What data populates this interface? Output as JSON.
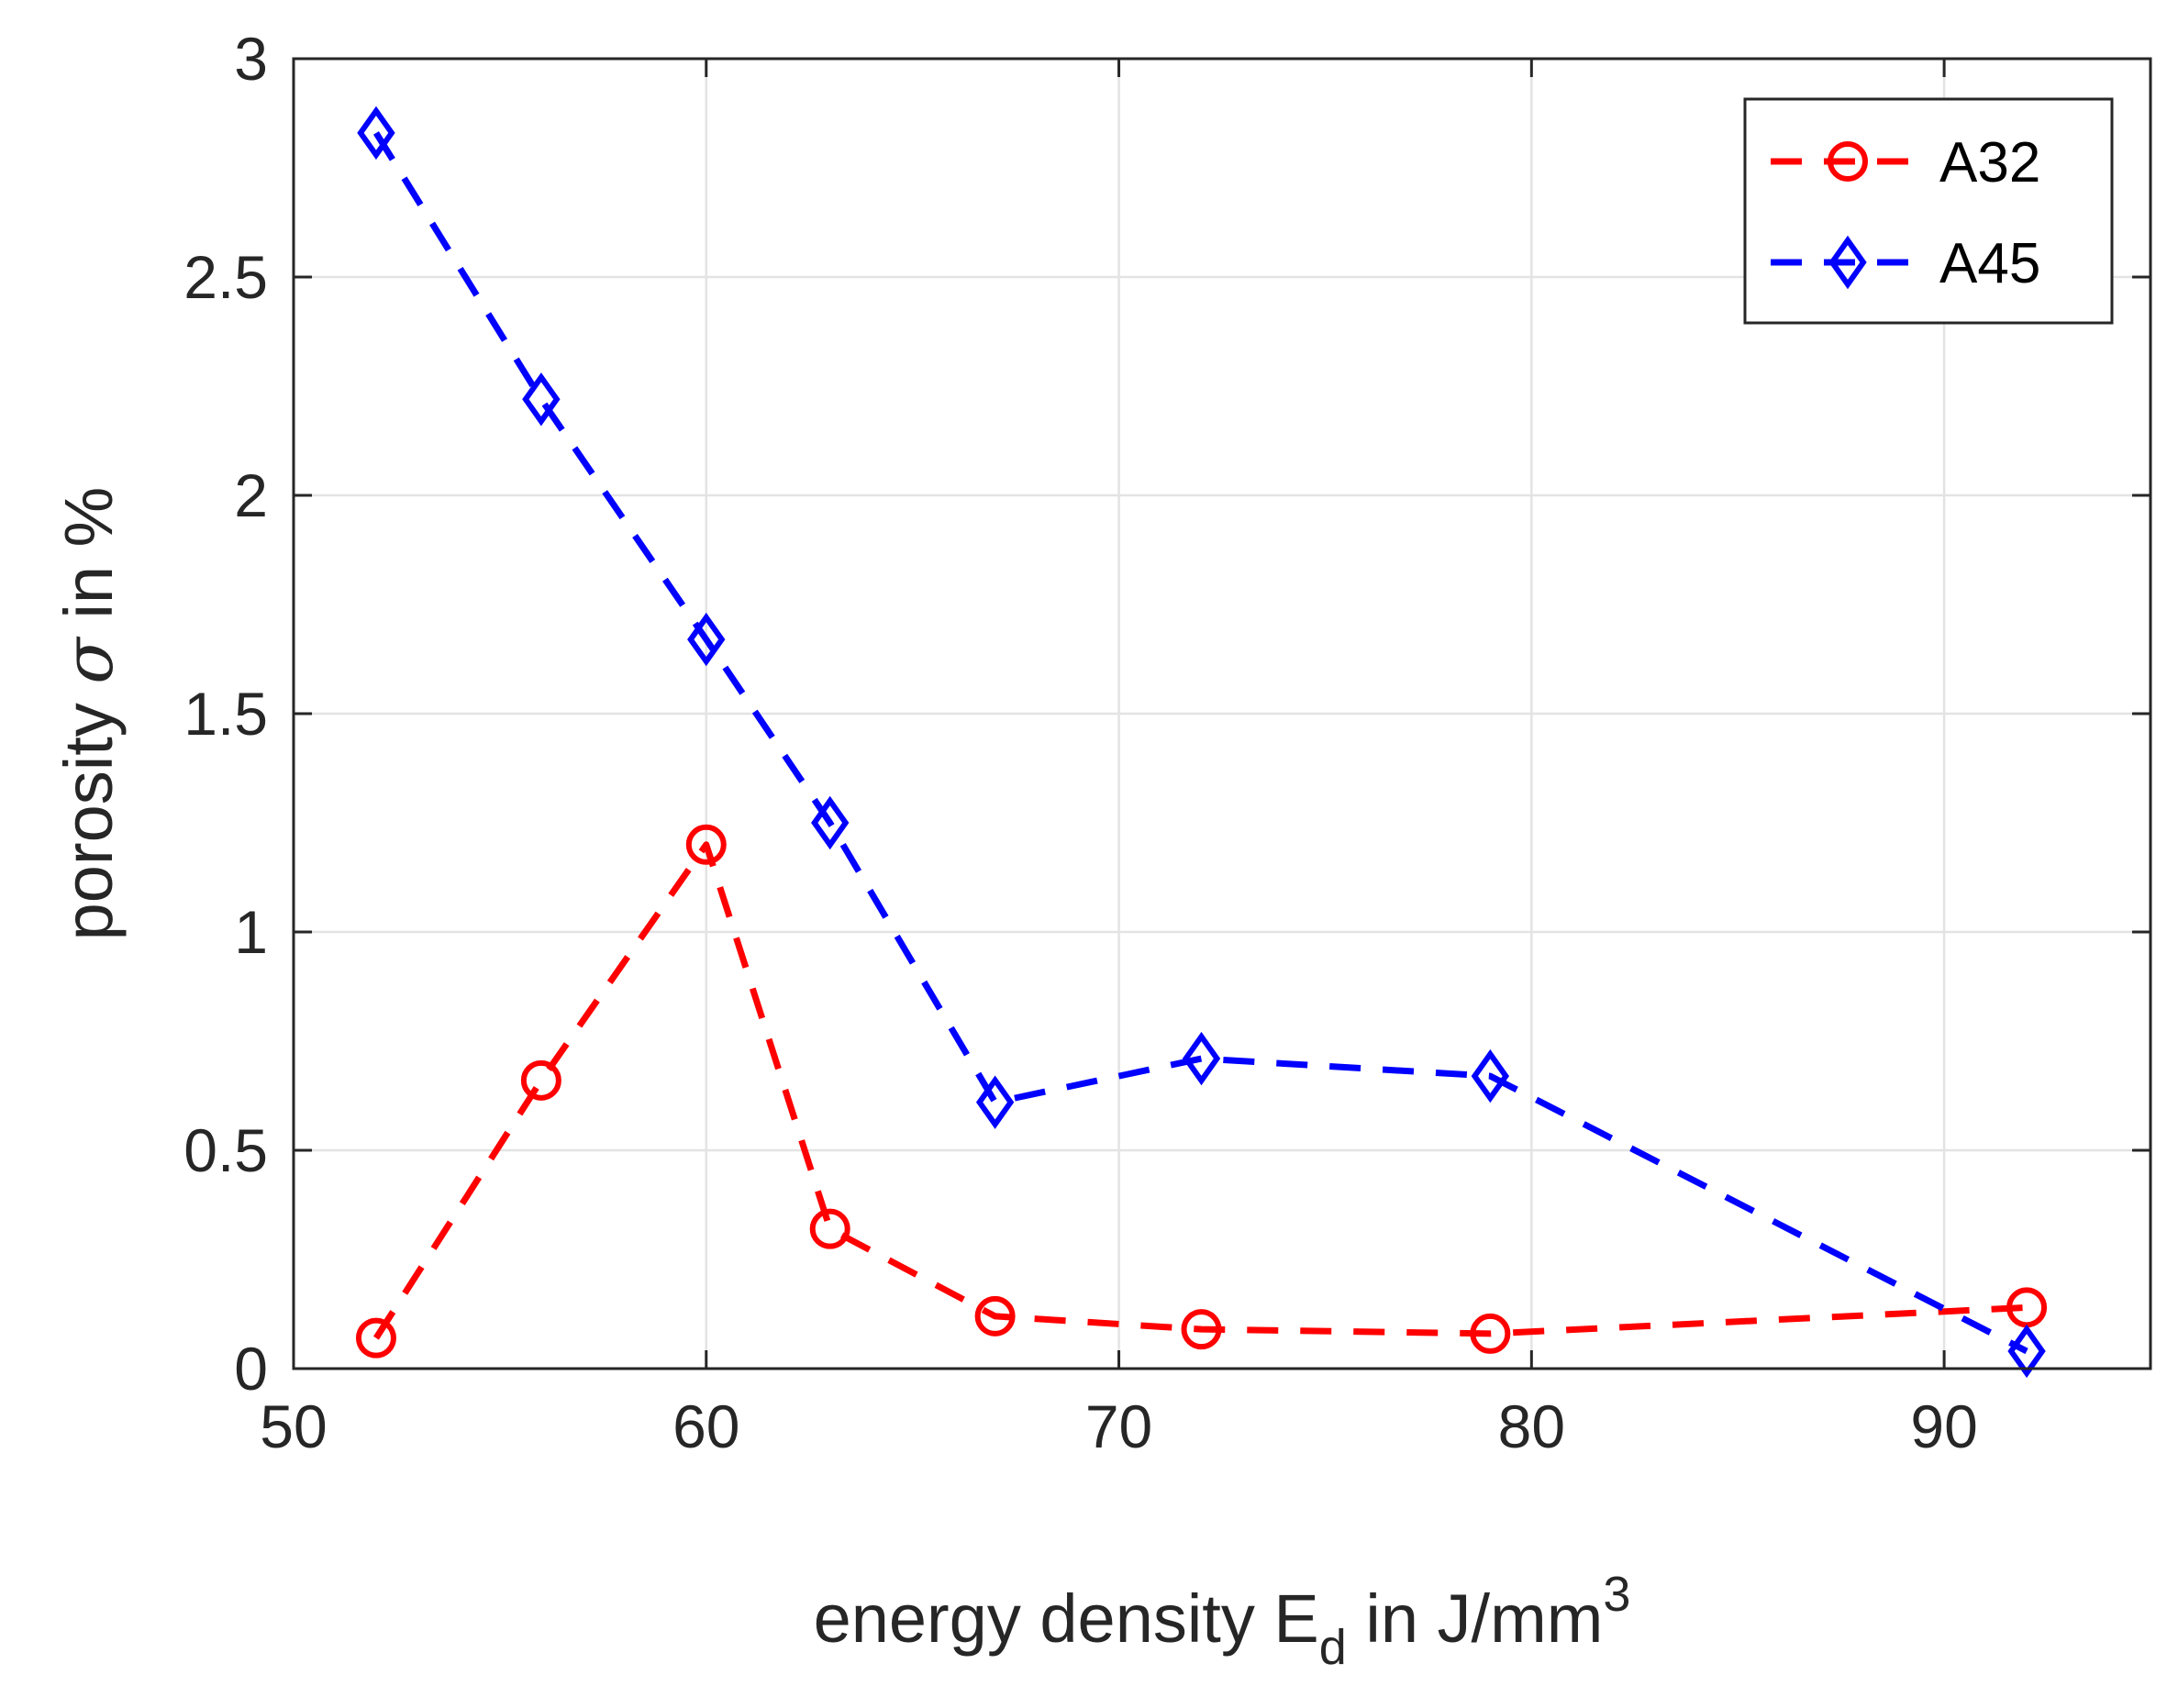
{
  "chart_data": {
    "type": "line",
    "title": "",
    "xlabel": {
      "main": "energy density E",
      "subscript": "d",
      "after_subscript": " in J/mm",
      "superscript": "3"
    },
    "ylabel": {
      "before_symbol": "porosity ",
      "symbol": "σ",
      "after_symbol": " in %"
    },
    "xlim": [
      50,
      95
    ],
    "ylim": [
      0,
      3
    ],
    "xticks": [
      50,
      60,
      70,
      80,
      90
    ],
    "xtick_labels": [
      "50",
      "60",
      "70",
      "80",
      "90"
    ],
    "yticks": [
      0,
      0.5,
      1,
      1.5,
      2,
      2.5,
      3
    ],
    "ytick_labels": [
      "0",
      "0.5",
      "1",
      "1.5",
      "2",
      "2.5",
      "3"
    ],
    "grid": true,
    "legend_position": "top-right",
    "series": [
      {
        "name": "A32",
        "color": "#ff0000",
        "marker": "circle",
        "line_style": "dashed",
        "x": [
          52,
          56,
          60,
          63,
          67,
          72,
          79,
          92
        ],
        "y": [
          0.07,
          0.66,
          1.2,
          0.32,
          0.12,
          0.09,
          0.08,
          0.14
        ]
      },
      {
        "name": "A45",
        "color": "#0000ff",
        "marker": "diamond",
        "line_style": "dashed",
        "x": [
          52,
          56,
          60,
          63,
          67,
          72,
          79,
          92
        ],
        "y": [
          2.83,
          2.22,
          1.67,
          1.25,
          0.61,
          0.71,
          0.67,
          0.04
        ]
      }
    ]
  }
}
